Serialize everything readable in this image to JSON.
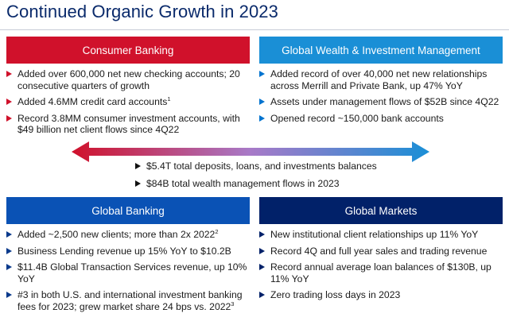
{
  "title": "Continued Organic Growth in 2023",
  "colors": {
    "red": "#d0112b",
    "blue": "#1a8fd6",
    "midblue": "#0a52b5",
    "navy": "#012169"
  },
  "consumer": {
    "header": "Consumer Banking",
    "items": [
      {
        "text": "Added over 600,000 net new checking accounts; 20 consecutive quarters of growth",
        "sup": ""
      },
      {
        "text": "Added 4.6MM credit card accounts",
        "sup": "1"
      },
      {
        "text": "Record 3.8MM consumer investment accounts, with $49 billion net client flows since 4Q22",
        "sup": ""
      }
    ]
  },
  "wealth": {
    "header": "Global Wealth & Investment Management",
    "items": [
      {
        "text": "Added record of over 40,000 net new relationships across Merrill and Private Bank, up 47% YoY",
        "sup": ""
      },
      {
        "text": "Assets under management flows of $52B since 4Q22",
        "sup": ""
      },
      {
        "text": "Opened record ~150,000 bank accounts",
        "sup": ""
      }
    ]
  },
  "center": {
    "items": [
      {
        "text": "$5.4T total deposits, loans, and investments balances"
      },
      {
        "text": "$84B total wealth management flows in 2023"
      }
    ]
  },
  "global_banking": {
    "header": "Global Banking",
    "items": [
      {
        "text": "Added ~2,500 new clients; more than 2x 2022",
        "sup": "2"
      },
      {
        "text": "Business Lending revenue up 15% YoY to $10.2B",
        "sup": ""
      },
      {
        "text": "$11.4B Global Transaction Services revenue, up 10% YoY",
        "sup": ""
      },
      {
        "text": "#3 in both U.S. and international investment banking fees for 2023; grew market share 24 bps vs. 2022",
        "sup": "3"
      }
    ]
  },
  "global_markets": {
    "header": "Global Markets",
    "items": [
      {
        "text": "New institutional client relationships up 11% YoY",
        "sup": ""
      },
      {
        "text": "Record 4Q and full year sales and trading revenue",
        "sup": ""
      },
      {
        "text": "Record annual average loan balances of $130B, up 11% YoY",
        "sup": ""
      },
      {
        "text": "Zero trading loss days in 2023",
        "sup": ""
      }
    ]
  }
}
